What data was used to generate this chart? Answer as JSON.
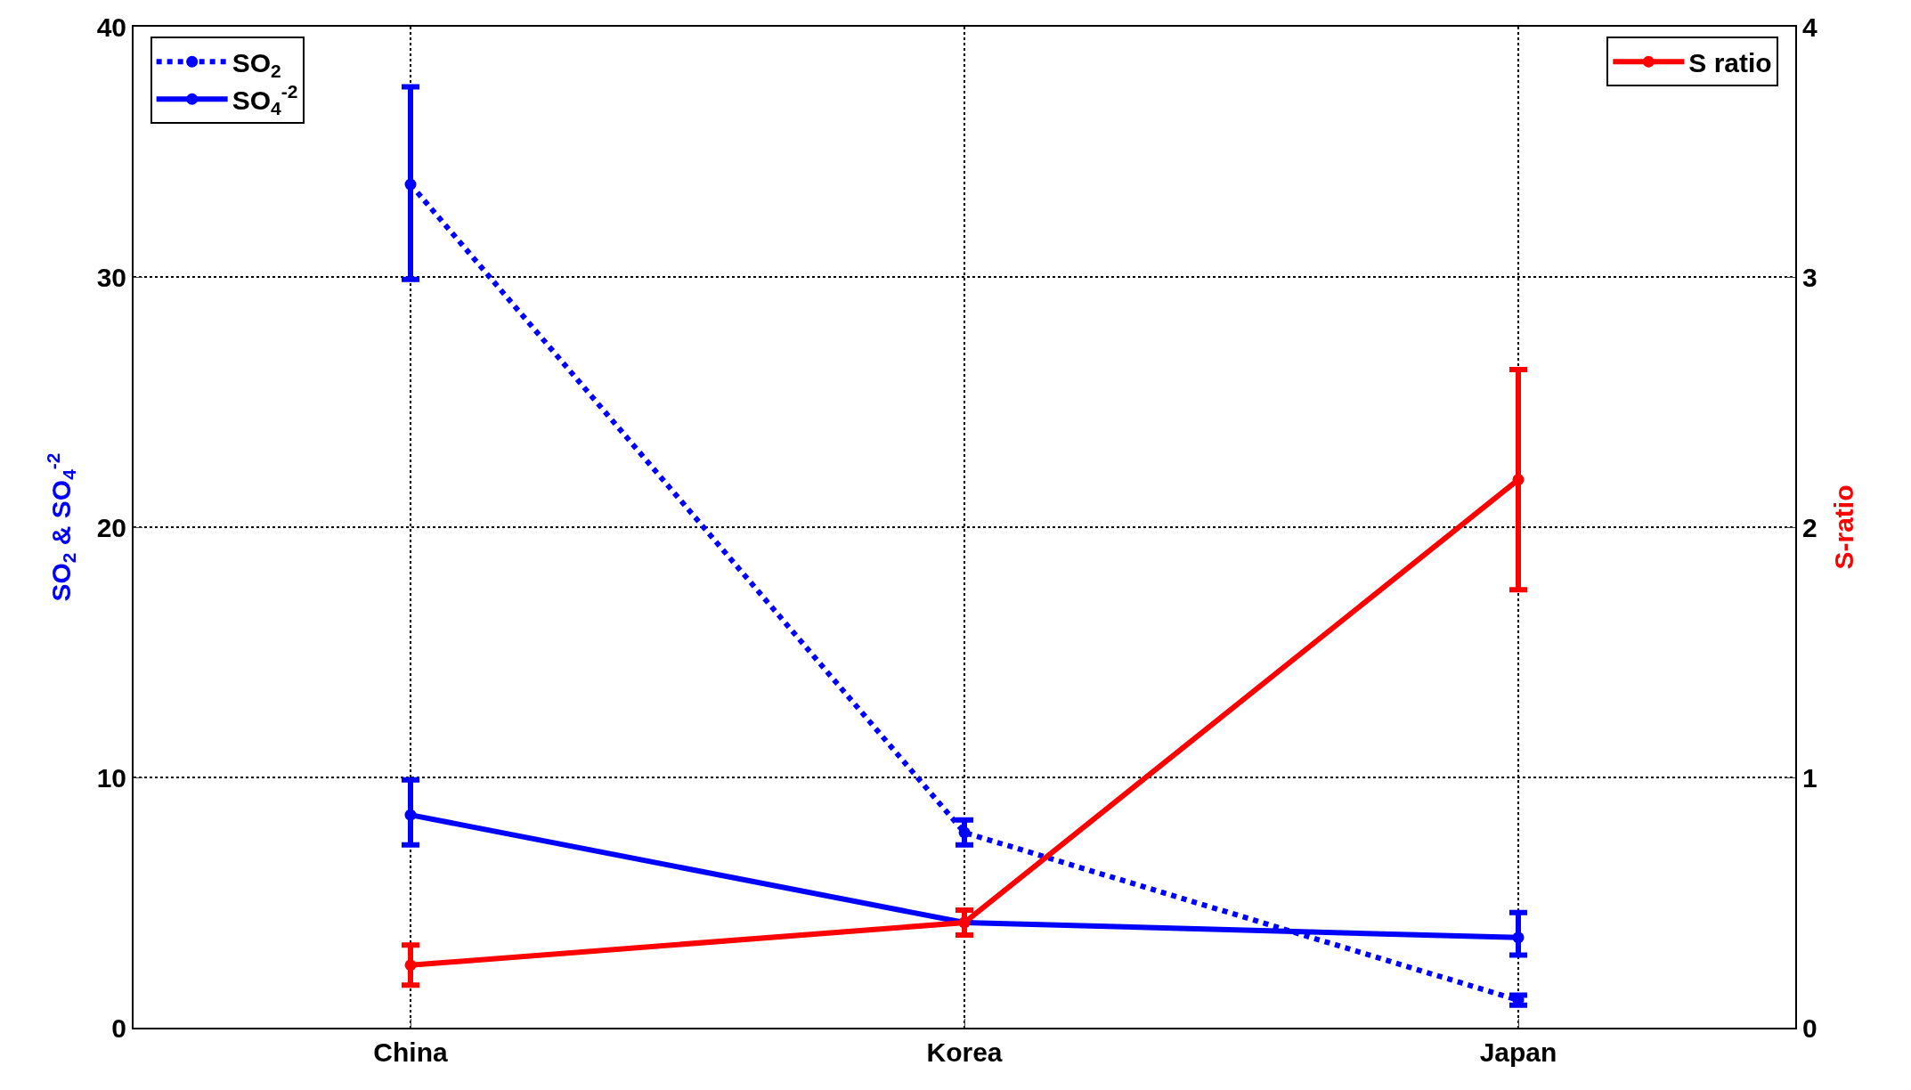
{
  "chart_data": {
    "type": "line",
    "categories": [
      "China",
      "Korea",
      "Japan"
    ],
    "ylabel": "SO$_{2}$ & SO$_{4}$$^{-2}$",
    "y2label": "S-ratio",
    "ylim": [
      0,
      40
    ],
    "yticks": [
      0,
      10,
      20,
      30,
      40
    ],
    "y2lim": [
      0,
      4
    ],
    "y2ticks": [
      0,
      1,
      2,
      3,
      4
    ],
    "grid": true,
    "legend": "top left",
    "marker": "circle",
    "series": [
      {
        "name": "SO$_{2}$",
        "color": "#0000ff",
        "line_style": "dotted",
        "values": [
          33.7,
          7.8,
          1.1
        ],
        "errors": [
          [
            29.9,
            37.6
          ],
          [
            7.3,
            8.3
          ],
          [
            0.9,
            1.3
          ]
        ]
      },
      {
        "name": "SO$_{4}$$^{-2}$",
        "color": "#0000ff",
        "line_style": "solid",
        "values": [
          8.5,
          4.2,
          3.6
        ],
        "errors": [
          [
            7.3,
            9.9
          ],
          null,
          [
            2.9,
            4.6
          ]
        ]
      },
      {
        "name": "S ratio",
        "color": "#ff0000",
        "line_style": "solid",
        "axis": "y2",
        "values": [
          0.25,
          0.42,
          2.19
        ],
        "errors": [
          [
            0.17,
            0.33
          ],
          [
            0.37,
            0.47
          ],
          [
            1.75,
            2.63
          ]
        ]
      }
    ]
  }
}
